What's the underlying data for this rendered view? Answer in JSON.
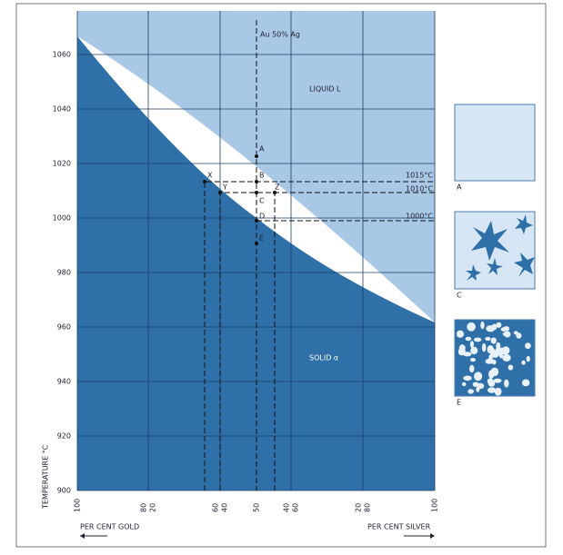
{
  "header": {
    "composition": "Au 50% Ag"
  },
  "regions": {
    "liquid": "LIQUID L",
    "solid": "SOLID α"
  },
  "axes": {
    "y_title": "TEMPERATURE °C",
    "y_ticks": [
      "1060",
      "1040",
      "1020",
      "1000",
      "980",
      "960",
      "940",
      "920",
      "900"
    ],
    "x_ticks": [
      [
        "100"
      ],
      [
        "80",
        "20"
      ],
      [
        "60",
        "40"
      ],
      [
        "50"
      ],
      [
        "40",
        "60"
      ],
      [
        "20",
        "80"
      ],
      [
        "100"
      ]
    ],
    "x_left": "PER CENT GOLD",
    "x_right": "PER CENT SILVER"
  },
  "points": {
    "x": "X",
    "y": "Y",
    "z": "Z",
    "a": "A",
    "b": "B",
    "c": "C",
    "d": "D",
    "e": "E"
  },
  "temperatures": [
    "1015°C",
    "1010°C",
    "1000°C"
  ],
  "panels": [
    "A",
    "C",
    "E"
  ]
}
